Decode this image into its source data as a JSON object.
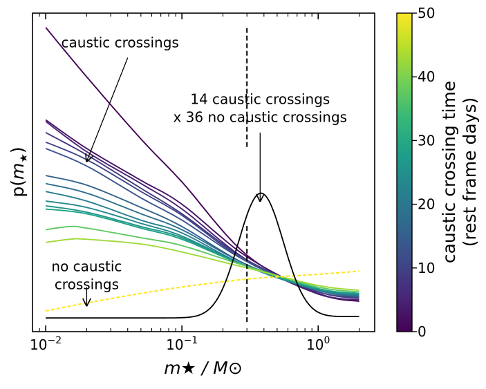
{
  "chart_data": {
    "type": "line",
    "xscale": "log",
    "xlim": [
      0.008,
      2.6
    ],
    "ylim": [
      0,
      1
    ],
    "xlabel": "m★ / M⊙",
    "ylabel": "p(m★)",
    "x_ticks": [
      {
        "value": 0.01,
        "base": "10",
        "exp": "−2"
      },
      {
        "value": 0.1,
        "base": "10",
        "exp": "−1"
      },
      {
        "value": 1,
        "base": "10",
        "exp": "0"
      }
    ],
    "series": [
      {
        "name": "dark purple top",
        "color": "#440154",
        "points": [
          [
            0.01,
            0.955
          ],
          [
            0.02,
            0.8
          ],
          [
            0.05,
            0.605
          ],
          [
            0.1,
            0.47
          ],
          [
            0.3,
            0.24
          ],
          [
            1,
            0.12
          ],
          [
            2,
            0.095
          ]
        ]
      },
      {
        "name": "purple a",
        "color": "#471365",
        "points": [
          [
            0.01,
            0.665
          ],
          [
            0.02,
            0.575
          ],
          [
            0.05,
            0.475
          ],
          [
            0.1,
            0.4
          ],
          [
            0.3,
            0.235
          ],
          [
            1,
            0.12
          ],
          [
            2,
            0.1
          ]
        ]
      },
      {
        "name": "purple b",
        "color": "#482475",
        "points": [
          [
            0.01,
            0.66
          ],
          [
            0.02,
            0.565
          ],
          [
            0.05,
            0.465
          ],
          [
            0.1,
            0.385
          ],
          [
            0.3,
            0.225
          ],
          [
            1,
            0.118
          ],
          [
            2,
            0.1
          ]
        ]
      },
      {
        "name": "purple c",
        "color": "#453781",
        "points": [
          [
            0.01,
            0.625
          ],
          [
            0.02,
            0.555
          ],
          [
            0.05,
            0.45
          ],
          [
            0.1,
            0.37
          ],
          [
            0.3,
            0.225
          ],
          [
            1,
            0.125
          ],
          [
            2,
            0.105
          ]
        ]
      },
      {
        "name": "purple d",
        "color": "#3f4889",
        "points": [
          [
            0.01,
            0.595
          ],
          [
            0.02,
            0.54
          ],
          [
            0.05,
            0.44
          ],
          [
            0.1,
            0.365
          ],
          [
            0.3,
            0.22
          ],
          [
            1,
            0.125
          ],
          [
            2,
            0.108
          ]
        ]
      },
      {
        "name": "slate e",
        "color": "#3a548c",
        "points": [
          [
            0.01,
            0.575
          ],
          [
            0.02,
            0.52
          ],
          [
            0.05,
            0.42
          ],
          [
            0.1,
            0.35
          ],
          [
            0.3,
            0.22
          ],
          [
            1,
            0.13
          ],
          [
            2,
            0.11
          ]
        ]
      },
      {
        "name": "blue f",
        "color": "#33638d",
        "points": [
          [
            0.01,
            0.49
          ],
          [
            0.02,
            0.46
          ],
          [
            0.05,
            0.39
          ],
          [
            0.1,
            0.33
          ],
          [
            0.3,
            0.21
          ],
          [
            1,
            0.13
          ],
          [
            2,
            0.11
          ]
        ]
      },
      {
        "name": "blue g",
        "color": "#2d708e",
        "points": [
          [
            0.01,
            0.465
          ],
          [
            0.02,
            0.435
          ],
          [
            0.05,
            0.37
          ],
          [
            0.1,
            0.32
          ],
          [
            0.3,
            0.21
          ],
          [
            1,
            0.13
          ],
          [
            2,
            0.112
          ]
        ]
      },
      {
        "name": "blue h",
        "color": "#287d8e",
        "points": [
          [
            0.01,
            0.44
          ],
          [
            0.02,
            0.41
          ],
          [
            0.05,
            0.35
          ],
          [
            0.1,
            0.31
          ],
          [
            0.3,
            0.205
          ],
          [
            1,
            0.13
          ],
          [
            2,
            0.115
          ]
        ]
      },
      {
        "name": "teal i",
        "color": "#238a8d",
        "points": [
          [
            0.01,
            0.41
          ],
          [
            0.02,
            0.39
          ],
          [
            0.05,
            0.34
          ],
          [
            0.1,
            0.3
          ],
          [
            0.3,
            0.205
          ],
          [
            1,
            0.132
          ],
          [
            2,
            0.118
          ]
        ]
      },
      {
        "name": "teal j",
        "color": "#1f968b",
        "points": [
          [
            0.01,
            0.395
          ],
          [
            0.02,
            0.375
          ],
          [
            0.05,
            0.33
          ],
          [
            0.1,
            0.295
          ],
          [
            0.3,
            0.205
          ],
          [
            1,
            0.135
          ],
          [
            2,
            0.12
          ]
        ]
      },
      {
        "name": "teal k",
        "color": "#20a386",
        "points": [
          [
            0.01,
            0.385
          ],
          [
            0.02,
            0.37
          ],
          [
            0.05,
            0.325
          ],
          [
            0.1,
            0.29
          ],
          [
            0.3,
            0.205
          ],
          [
            1,
            0.135
          ],
          [
            2,
            0.12
          ]
        ]
      },
      {
        "name": "green l",
        "color": "#5ec962",
        "points": [
          [
            0.01,
            0.32
          ],
          [
            0.015,
            0.33
          ],
          [
            0.02,
            0.325
          ],
          [
            0.05,
            0.295
          ],
          [
            0.1,
            0.27
          ],
          [
            0.3,
            0.205
          ],
          [
            1,
            0.14
          ],
          [
            2,
            0.125
          ]
        ]
      },
      {
        "name": "lime m",
        "color": "#a0da39",
        "points": [
          [
            0.01,
            0.28
          ],
          [
            0.015,
            0.29
          ],
          [
            0.02,
            0.29
          ],
          [
            0.05,
            0.275
          ],
          [
            0.1,
            0.25
          ],
          [
            0.3,
            0.2
          ],
          [
            1,
            0.145
          ],
          [
            2,
            0.13
          ]
        ]
      },
      {
        "name": "yellow dashed",
        "color": "#fde725",
        "dashed": true,
        "points": [
          [
            0.01,
            0.065
          ],
          [
            0.02,
            0.09
          ],
          [
            0.05,
            0.12
          ],
          [
            0.1,
            0.14
          ],
          [
            0.3,
            0.165
          ],
          [
            1,
            0.18
          ],
          [
            2,
            0.19
          ]
        ]
      },
      {
        "name": "gaussian",
        "color": "#000000",
        "gaussian": true,
        "mu_log10": -0.42,
        "sigma_log10": 0.165,
        "peak": 0.435,
        "base": 0.043,
        "points": [
          [
            0.01,
            0.043
          ],
          [
            2,
            0.048
          ]
        ]
      }
    ],
    "reference_line": {
      "x": 0.3,
      "segments": [
        [
          0.03,
          0.335
        ],
        [
          0.58,
          0.955
        ]
      ]
    },
    "annotations": [
      {
        "text": "caustic crossings",
        "text_at": [
          0.013,
          0.893
        ],
        "arrow_from": [
          0.04,
          0.86
        ],
        "arrow_to": [
          0.02,
          0.535
        ]
      },
      {
        "lines": [
          "14 caustic crossings",
          "x 36 no caustic crossings"
        ],
        "text_at": [
          0.375,
          0.715
        ],
        "arrow_from": [
          0.375,
          0.625
        ],
        "arrow_to": [
          0.375,
          0.41
        ]
      },
      {
        "lines": [
          "no caustic",
          "crossings"
        ],
        "text_at": [
          0.02,
          0.19
        ],
        "arrow_from": [
          0.02,
          0.14
        ],
        "arrow_to": [
          0.02,
          0.082
        ]
      }
    ],
    "colorbar": {
      "label": [
        "caustic crossing time",
        "(rest frame days)"
      ],
      "range": [
        0,
        50
      ],
      "ticks": [
        0,
        10,
        20,
        30,
        40,
        50
      ],
      "stops": [
        "#440154",
        "#482878",
        "#3e4989",
        "#31688e",
        "#26828e",
        "#1f9e89",
        "#35b779",
        "#6ece58",
        "#b5de2b",
        "#fde725"
      ]
    }
  }
}
